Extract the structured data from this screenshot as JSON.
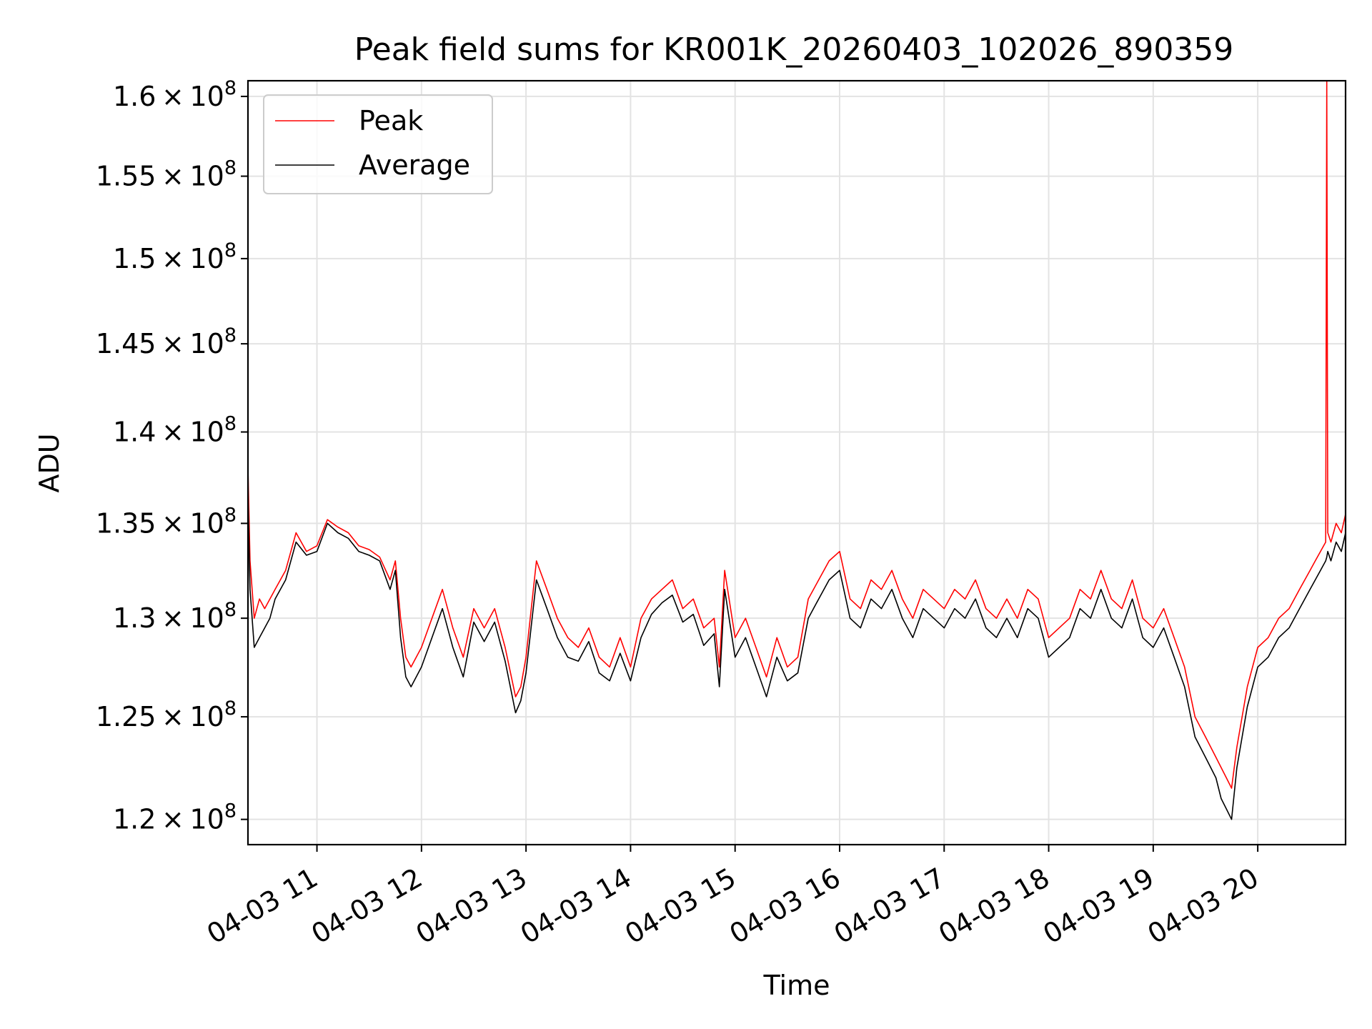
{
  "chart_data": {
    "type": "line",
    "title": "Peak field sums for KR001K_20260403_102026_890359",
    "xlabel": "Time",
    "ylabel": "ADU",
    "yscale": "log",
    "grid": true,
    "legend_position": "top-left",
    "x_unit": "hours",
    "xlim": [
      10.34,
      20.84
    ],
    "ylim": [
      118800000,
      161000000
    ],
    "xticks": [
      {
        "value": 11,
        "label": "04-03 11"
      },
      {
        "value": 12,
        "label": "04-03 12"
      },
      {
        "value": 13,
        "label": "04-03 13"
      },
      {
        "value": 14,
        "label": "04-03 14"
      },
      {
        "value": 15,
        "label": "04-03 15"
      },
      {
        "value": 16,
        "label": "04-03 16"
      },
      {
        "value": 17,
        "label": "04-03 17"
      },
      {
        "value": 18,
        "label": "04-03 18"
      },
      {
        "value": 19,
        "label": "04-03 19"
      },
      {
        "value": 20,
        "label": "04-03 20"
      }
    ],
    "yticks": [
      {
        "value": 120000000,
        "mantissa": "1.2",
        "base": "10",
        "exp": "8"
      },
      {
        "value": 125000000,
        "mantissa": "1.25",
        "base": "10",
        "exp": "8"
      },
      {
        "value": 130000000,
        "mantissa": "1.3",
        "base": "10",
        "exp": "8"
      },
      {
        "value": 135000000,
        "mantissa": "1.35",
        "base": "10",
        "exp": "8"
      },
      {
        "value": 140000000,
        "mantissa": "1.4",
        "base": "10",
        "exp": "8"
      },
      {
        "value": 145000000,
        "mantissa": "1.45",
        "base": "10",
        "exp": "8"
      },
      {
        "value": 150000000,
        "mantissa": "1.5",
        "base": "10",
        "exp": "8"
      },
      {
        "value": 155000000,
        "mantissa": "1.55",
        "base": "10",
        "exp": "8"
      },
      {
        "value": 160000000,
        "mantissa": "1.6",
        "base": "10",
        "exp": "8"
      }
    ],
    "series": [
      {
        "name": "Peak",
        "color": "#ff0000",
        "x": [
          10.34,
          10.36,
          10.4,
          10.45,
          10.5,
          10.55,
          10.6,
          10.7,
          10.8,
          10.9,
          11.0,
          11.1,
          11.2,
          11.3,
          11.4,
          11.5,
          11.6,
          11.7,
          11.75,
          11.8,
          11.85,
          11.9,
          12.0,
          12.1,
          12.2,
          12.3,
          12.4,
          12.5,
          12.6,
          12.7,
          12.8,
          12.9,
          12.95,
          13.0,
          13.1,
          13.2,
          13.3,
          13.4,
          13.5,
          13.6,
          13.7,
          13.8,
          13.9,
          14.0,
          14.1,
          14.2,
          14.3,
          14.4,
          14.5,
          14.6,
          14.7,
          14.8,
          14.85,
          14.9,
          15.0,
          15.1,
          15.2,
          15.3,
          15.4,
          15.5,
          15.6,
          15.7,
          15.8,
          15.9,
          16.0,
          16.1,
          16.2,
          16.3,
          16.4,
          16.5,
          16.6,
          16.7,
          16.8,
          16.9,
          17.0,
          17.1,
          17.2,
          17.3,
          17.4,
          17.5,
          17.6,
          17.7,
          17.8,
          17.9,
          18.0,
          18.1,
          18.2,
          18.3,
          18.4,
          18.5,
          18.6,
          18.7,
          18.8,
          18.9,
          19.0,
          19.1,
          19.2,
          19.3,
          19.4,
          19.5,
          19.6,
          19.65,
          19.7,
          19.75,
          19.8,
          19.9,
          20.0,
          20.1,
          20.2,
          20.3,
          20.4,
          20.5,
          20.55,
          20.6,
          20.65,
          20.66,
          20.67,
          20.7,
          20.75,
          20.8,
          20.84
        ],
        "y": [
          138000000,
          133000000,
          130000000,
          131000000,
          130500000,
          131000000,
          131500000,
          132500000,
          134500000,
          133500000,
          133800000,
          135200000,
          134800000,
          134500000,
          133800000,
          133600000,
          133200000,
          132000000,
          133000000,
          130000000,
          128000000,
          127500000,
          128500000,
          130000000,
          131500000,
          129500000,
          128000000,
          130500000,
          129500000,
          130500000,
          128500000,
          126000000,
          126500000,
          128000000,
          133000000,
          131500000,
          130000000,
          129000000,
          128500000,
          129500000,
          128000000,
          127500000,
          129000000,
          127500000,
          130000000,
          131000000,
          131500000,
          132000000,
          130500000,
          131000000,
          129500000,
          130000000,
          127500000,
          132500000,
          129000000,
          130000000,
          128500000,
          127000000,
          129000000,
          127500000,
          128000000,
          131000000,
          132000000,
          133000000,
          133500000,
          131000000,
          130500000,
          132000000,
          131500000,
          132500000,
          131000000,
          130000000,
          131500000,
          131000000,
          130500000,
          131500000,
          131000000,
          132000000,
          130500000,
          130000000,
          131000000,
          130000000,
          131500000,
          131000000,
          129000000,
          129500000,
          130000000,
          131500000,
          131000000,
          132500000,
          131000000,
          130500000,
          132000000,
          130000000,
          129500000,
          130500000,
          129000000,
          127500000,
          125000000,
          124000000,
          123000000,
          122500000,
          122000000,
          121500000,
          123500000,
          126500000,
          128500000,
          129000000,
          130000000,
          130500000,
          131500000,
          132500000,
          133000000,
          133500000,
          134000000,
          161000000,
          134500000,
          134000000,
          135000000,
          134500000,
          135500000
        ]
      },
      {
        "name": "Average",
        "color": "#000000",
        "x": [
          10.34,
          10.36,
          10.4,
          10.45,
          10.5,
          10.55,
          10.6,
          10.7,
          10.8,
          10.9,
          11.0,
          11.1,
          11.2,
          11.3,
          11.4,
          11.5,
          11.6,
          11.7,
          11.75,
          11.8,
          11.85,
          11.9,
          12.0,
          12.1,
          12.2,
          12.3,
          12.4,
          12.5,
          12.6,
          12.7,
          12.8,
          12.9,
          12.95,
          13.0,
          13.1,
          13.2,
          13.3,
          13.4,
          13.5,
          13.6,
          13.7,
          13.8,
          13.9,
          14.0,
          14.1,
          14.2,
          14.3,
          14.4,
          14.5,
          14.6,
          14.7,
          14.8,
          14.85,
          14.9,
          15.0,
          15.1,
          15.2,
          15.3,
          15.4,
          15.5,
          15.6,
          15.7,
          15.8,
          15.9,
          16.0,
          16.1,
          16.2,
          16.3,
          16.4,
          16.5,
          16.6,
          16.7,
          16.8,
          16.9,
          17.0,
          17.1,
          17.2,
          17.3,
          17.4,
          17.5,
          17.6,
          17.7,
          17.8,
          17.9,
          18.0,
          18.1,
          18.2,
          18.3,
          18.4,
          18.5,
          18.6,
          18.7,
          18.8,
          18.9,
          19.0,
          19.1,
          19.2,
          19.3,
          19.4,
          19.5,
          19.6,
          19.65,
          19.7,
          19.75,
          19.8,
          19.9,
          20.0,
          20.1,
          20.2,
          20.3,
          20.4,
          20.5,
          20.55,
          20.6,
          20.65,
          20.66,
          20.67,
          20.7,
          20.75,
          20.8,
          20.84
        ],
        "y": [
          136500000,
          131500000,
          128500000,
          129000000,
          129500000,
          130000000,
          131000000,
          132000000,
          134000000,
          133300000,
          133500000,
          135000000,
          134500000,
          134200000,
          133500000,
          133300000,
          133000000,
          131500000,
          132500000,
          129000000,
          127000000,
          126500000,
          127500000,
          129000000,
          130500000,
          128500000,
          127000000,
          129800000,
          128800000,
          129800000,
          127800000,
          125200000,
          125800000,
          127200000,
          132000000,
          130500000,
          129000000,
          128000000,
          127800000,
          128800000,
          127200000,
          126800000,
          128200000,
          126800000,
          129000000,
          130200000,
          130800000,
          131200000,
          129800000,
          130200000,
          128600000,
          129200000,
          126500000,
          131500000,
          128000000,
          129000000,
          127500000,
          126000000,
          128000000,
          126800000,
          127200000,
          130000000,
          131000000,
          132000000,
          132500000,
          130000000,
          129500000,
          131000000,
          130500000,
          131500000,
          130000000,
          129000000,
          130500000,
          130000000,
          129500000,
          130500000,
          130000000,
          131000000,
          129500000,
          129000000,
          130000000,
          129000000,
          130500000,
          130000000,
          128000000,
          128500000,
          129000000,
          130500000,
          130000000,
          131500000,
          130000000,
          129500000,
          131000000,
          129000000,
          128500000,
          129500000,
          128000000,
          126500000,
          124000000,
          123000000,
          122000000,
          121000000,
          120500000,
          120000000,
          122500000,
          125500000,
          127500000,
          128000000,
          129000000,
          129500000,
          130500000,
          131500000,
          132000000,
          132500000,
          133000000,
          133200000,
          133500000,
          133000000,
          134000000,
          133500000,
          134500000
        ]
      }
    ]
  }
}
